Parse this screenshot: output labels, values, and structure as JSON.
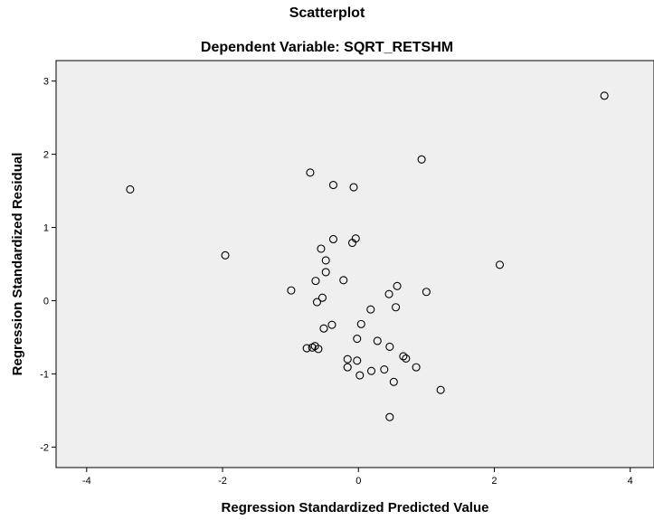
{
  "chart_data": {
    "type": "scatter",
    "title": "Scatterplot",
    "subtitle": "Dependent Variable: SQRT_RETSHM",
    "xlabel": "Regression Standardized Predicted Value",
    "ylabel": "Regression Standardized Residual",
    "xlim": [
      -4.45,
      4.35
    ],
    "ylim": [
      -2.28,
      3.28
    ],
    "xticks": [
      -4,
      -2,
      0,
      2,
      4
    ],
    "yticks": [
      -2,
      -1,
      0,
      1,
      2,
      3
    ],
    "grid": false,
    "colors": {
      "plot_background": "#efefef",
      "marker_stroke": "#000000",
      "axis": "#000000"
    },
    "points": [
      {
        "x": -3.36,
        "y": 1.52
      },
      {
        "x": -1.96,
        "y": 0.62
      },
      {
        "x": -0.71,
        "y": 1.75
      },
      {
        "x": -0.37,
        "y": 1.58
      },
      {
        "x": -0.07,
        "y": 1.55
      },
      {
        "x": 0.93,
        "y": 1.93
      },
      {
        "x": 3.62,
        "y": 2.8
      },
      {
        "x": 2.08,
        "y": 0.49
      },
      {
        "x": -0.37,
        "y": 0.84
      },
      {
        "x": -0.04,
        "y": 0.85
      },
      {
        "x": -0.09,
        "y": 0.79
      },
      {
        "x": -0.55,
        "y": 0.71
      },
      {
        "x": -0.48,
        "y": 0.55
      },
      {
        "x": -0.48,
        "y": 0.39
      },
      {
        "x": -0.63,
        "y": 0.27
      },
      {
        "x": -0.22,
        "y": 0.28
      },
      {
        "x": -0.99,
        "y": 0.14
      },
      {
        "x": 0.57,
        "y": 0.2
      },
      {
        "x": 1.0,
        "y": 0.12
      },
      {
        "x": 0.45,
        "y": 0.09
      },
      {
        "x": -0.53,
        "y": 0.04
      },
      {
        "x": -0.61,
        "y": -0.02
      },
      {
        "x": 0.55,
        "y": -0.09
      },
      {
        "x": 0.18,
        "y": -0.12
      },
      {
        "x": 0.04,
        "y": -0.32
      },
      {
        "x": -0.39,
        "y": -0.33
      },
      {
        "x": -0.51,
        "y": -0.38
      },
      {
        "x": -0.02,
        "y": -0.52
      },
      {
        "x": 0.28,
        "y": -0.55
      },
      {
        "x": 0.46,
        "y": -0.63
      },
      {
        "x": -0.76,
        "y": -0.65
      },
      {
        "x": -0.68,
        "y": -0.64
      },
      {
        "x": -0.64,
        "y": -0.62
      },
      {
        "x": -0.59,
        "y": -0.66
      },
      {
        "x": 0.66,
        "y": -0.76
      },
      {
        "x": 0.7,
        "y": -0.79
      },
      {
        "x": -0.16,
        "y": -0.8
      },
      {
        "x": -0.02,
        "y": -0.82
      },
      {
        "x": -0.16,
        "y": -0.91
      },
      {
        "x": 0.38,
        "y": -0.94
      },
      {
        "x": 0.85,
        "y": -0.91
      },
      {
        "x": 0.19,
        "y": -0.96
      },
      {
        "x": 0.02,
        "y": -1.02
      },
      {
        "x": 0.52,
        "y": -1.11
      },
      {
        "x": 1.21,
        "y": -1.22
      },
      {
        "x": 0.46,
        "y": -1.59
      }
    ]
  }
}
